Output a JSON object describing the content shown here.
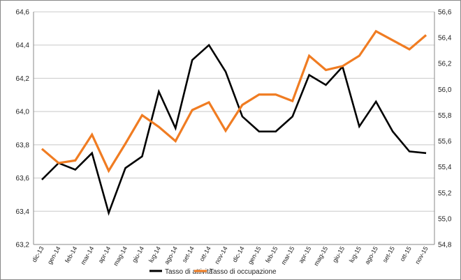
{
  "chart_data": {
    "type": "line",
    "categories": [
      "dic-13",
      "gen-14",
      "feb-14",
      "mar-14",
      "apr-14",
      "mag-14",
      "giu-14",
      "lug-14",
      "ago-14",
      "set-14",
      "ott-14",
      "nov-14",
      "dic-14",
      "gen-15",
      "feb-15",
      "mar-15",
      "apr-15",
      "mag-15",
      "giu-15",
      "lug-15",
      "ago-15",
      "set-15",
      "ott-15",
      "nov-15"
    ],
    "series": [
      {
        "name": "Tasso di attività",
        "axis": "left",
        "color": "#000000",
        "values": [
          63.59,
          63.69,
          63.65,
          63.75,
          63.39,
          63.66,
          63.73,
          64.12,
          63.9,
          64.31,
          64.4,
          64.24,
          63.97,
          63.88,
          63.88,
          63.97,
          64.22,
          64.16,
          64.27,
          63.91,
          64.06,
          63.88,
          63.76,
          63.75
        ]
      },
      {
        "name": "Tasso di occupazione",
        "axis": "right",
        "color": "#f07c22",
        "values": [
          55.54,
          55.43,
          55.45,
          55.65,
          55.37,
          55.58,
          55.8,
          55.71,
          55.6,
          55.84,
          55.9,
          55.68,
          55.88,
          55.96,
          55.96,
          55.91,
          56.26,
          56.15,
          56.18,
          56.26,
          56.45,
          56.38,
          56.31,
          56.42
        ]
      }
    ],
    "yleft": {
      "lim": [
        63.2,
        64.6
      ],
      "ticks": [
        "63,2",
        "63,4",
        "63,6",
        "63,8",
        "64,0",
        "64,2",
        "64,4",
        "64,6"
      ]
    },
    "yright": {
      "lim": [
        54.8,
        56.6
      ],
      "ticks": [
        "54,8",
        "55,0",
        "55,2",
        "55,4",
        "55,6",
        "55,8",
        "56,0",
        "56,2",
        "56,4",
        "56,6"
      ]
    },
    "grid": true,
    "legend": "bottom-center"
  }
}
